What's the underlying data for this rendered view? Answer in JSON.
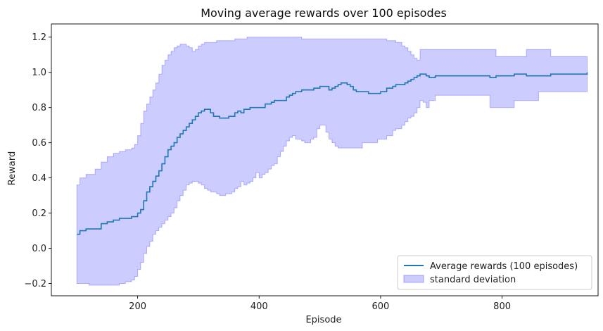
{
  "chart_data": {
    "type": "line",
    "title": "Moving average rewards over 100 episodes",
    "xlabel": "Episode",
    "ylabel": "Reward",
    "xlim": [
      58,
      958
    ],
    "ylim": [
      -0.27,
      1.275
    ],
    "xticks": [
      200,
      400,
      600,
      800
    ],
    "yticks": [
      -0.2,
      0.0,
      0.2,
      0.4,
      0.6,
      0.8,
      1.0,
      1.2
    ],
    "grid": false,
    "legend_position": "lower-right",
    "series": [
      {
        "name": "Average rewards (100 episodes)",
        "kind": "line",
        "color": "#1f77b4",
        "x": [
          100,
          105,
          110,
          115,
          120,
          130,
          140,
          150,
          160,
          170,
          180,
          190,
          195,
          200,
          205,
          210,
          215,
          220,
          225,
          230,
          235,
          240,
          245,
          250,
          255,
          260,
          265,
          270,
          275,
          280,
          285,
          290,
          295,
          300,
          305,
          310,
          315,
          320,
          325,
          330,
          335,
          340,
          345,
          350,
          355,
          360,
          365,
          370,
          375,
          380,
          385,
          390,
          395,
          400,
          405,
          410,
          415,
          420,
          425,
          430,
          435,
          440,
          445,
          450,
          455,
          460,
          465,
          470,
          475,
          480,
          485,
          490,
          495,
          500,
          505,
          510,
          515,
          520,
          525,
          530,
          535,
          540,
          545,
          550,
          555,
          560,
          565,
          570,
          575,
          580,
          585,
          590,
          595,
          600,
          605,
          610,
          615,
          620,
          625,
          630,
          635,
          640,
          645,
          650,
          655,
          660,
          665,
          670,
          675,
          680,
          690,
          700,
          720,
          740,
          760,
          780,
          790,
          800,
          820,
          840,
          860,
          880,
          900,
          920,
          935,
          940
        ],
        "y": [
          0.08,
          0.1,
          0.1,
          0.11,
          0.11,
          0.11,
          0.14,
          0.15,
          0.16,
          0.17,
          0.17,
          0.18,
          0.18,
          0.2,
          0.22,
          0.27,
          0.32,
          0.35,
          0.38,
          0.41,
          0.44,
          0.48,
          0.52,
          0.56,
          0.58,
          0.6,
          0.63,
          0.65,
          0.67,
          0.69,
          0.71,
          0.73,
          0.75,
          0.77,
          0.78,
          0.79,
          0.79,
          0.77,
          0.75,
          0.75,
          0.74,
          0.74,
          0.74,
          0.75,
          0.75,
          0.77,
          0.78,
          0.77,
          0.79,
          0.79,
          0.8,
          0.8,
          0.8,
          0.8,
          0.8,
          0.82,
          0.82,
          0.83,
          0.84,
          0.84,
          0.84,
          0.84,
          0.86,
          0.87,
          0.88,
          0.89,
          0.89,
          0.9,
          0.9,
          0.9,
          0.9,
          0.91,
          0.91,
          0.92,
          0.92,
          0.92,
          0.9,
          0.91,
          0.92,
          0.93,
          0.94,
          0.94,
          0.93,
          0.92,
          0.9,
          0.89,
          0.89,
          0.89,
          0.89,
          0.88,
          0.88,
          0.88,
          0.88,
          0.89,
          0.89,
          0.91,
          0.91,
          0.92,
          0.93,
          0.93,
          0.93,
          0.94,
          0.95,
          0.96,
          0.97,
          0.98,
          0.99,
          0.99,
          0.98,
          0.97,
          0.98,
          0.98,
          0.98,
          0.98,
          0.98,
          0.97,
          0.98,
          0.98,
          0.99,
          0.98,
          0.98,
          0.99,
          0.99,
          0.99,
          0.99,
          1.0
        ]
      },
      {
        "name": "standard deviation",
        "kind": "band",
        "color": "#0000ff",
        "fill_alpha": 0.2,
        "x": [
          100,
          105,
          110,
          115,
          120,
          130,
          140,
          150,
          160,
          170,
          180,
          190,
          195,
          200,
          205,
          210,
          215,
          220,
          225,
          230,
          235,
          240,
          245,
          250,
          255,
          260,
          265,
          270,
          275,
          280,
          285,
          290,
          295,
          300,
          305,
          310,
          315,
          320,
          325,
          330,
          335,
          340,
          345,
          350,
          355,
          360,
          365,
          370,
          375,
          380,
          385,
          390,
          395,
          400,
          405,
          410,
          415,
          420,
          425,
          430,
          435,
          440,
          445,
          450,
          455,
          460,
          465,
          470,
          475,
          480,
          485,
          490,
          495,
          500,
          505,
          510,
          515,
          520,
          525,
          530,
          535,
          540,
          545,
          550,
          555,
          560,
          565,
          570,
          575,
          580,
          585,
          590,
          595,
          600,
          605,
          610,
          615,
          620,
          625,
          630,
          635,
          640,
          645,
          650,
          655,
          660,
          665,
          670,
          675,
          680,
          690,
          700,
          720,
          740,
          760,
          780,
          790,
          800,
          820,
          840,
          860,
          880,
          900,
          920,
          935,
          940
        ],
        "lower": [
          -0.2,
          -0.2,
          -0.2,
          -0.2,
          -0.2,
          -0.21,
          -0.21,
          -0.21,
          -0.21,
          -0.21,
          -0.2,
          -0.19,
          -0.18,
          -0.16,
          -0.12,
          -0.08,
          -0.03,
          0.01,
          0.04,
          0.08,
          0.1,
          0.12,
          0.14,
          0.16,
          0.18,
          0.2,
          0.23,
          0.27,
          0.3,
          0.33,
          0.36,
          0.37,
          0.38,
          0.38,
          0.37,
          0.36,
          0.34,
          0.33,
          0.32,
          0.32,
          0.31,
          0.3,
          0.3,
          0.31,
          0.31,
          0.32,
          0.34,
          0.35,
          0.38,
          0.36,
          0.37,
          0.38,
          0.4,
          0.43,
          0.4,
          0.42,
          0.43,
          0.45,
          0.47,
          0.48,
          0.52,
          0.55,
          0.58,
          0.61,
          0.63,
          0.64,
          0.62,
          0.62,
          0.61,
          0.6,
          0.6,
          0.62,
          0.63,
          0.68,
          0.7,
          0.7,
          0.66,
          0.62,
          0.6,
          0.58,
          0.57,
          0.57,
          0.57,
          0.57,
          0.57,
          0.57,
          0.57,
          0.57,
          0.6,
          0.6,
          0.6,
          0.6,
          0.6,
          0.62,
          0.62,
          0.62,
          0.64,
          0.64,
          0.67,
          0.68,
          0.68,
          0.7,
          0.72,
          0.74,
          0.75,
          0.77,
          0.8,
          0.84,
          0.83,
          0.8,
          0.84,
          0.87,
          0.87,
          0.87,
          0.87,
          0.87,
          0.8,
          0.8,
          0.8,
          0.84,
          0.84,
          0.89,
          0.89,
          0.89,
          0.89,
          0.89
        ],
        "upper": [
          0.36,
          0.4,
          0.4,
          0.42,
          0.42,
          0.45,
          0.49,
          0.52,
          0.54,
          0.55,
          0.56,
          0.57,
          0.59,
          0.64,
          0.71,
          0.78,
          0.82,
          0.86,
          0.9,
          0.94,
          0.99,
          1.04,
          1.07,
          1.1,
          1.12,
          1.14,
          1.15,
          1.16,
          1.16,
          1.15,
          1.14,
          1.12,
          1.13,
          1.15,
          1.16,
          1.17,
          1.17,
          1.17,
          1.17,
          1.18,
          1.18,
          1.18,
          1.18,
          1.18,
          1.18,
          1.19,
          1.19,
          1.19,
          1.19,
          1.2,
          1.2,
          1.2,
          1.2,
          1.2,
          1.2,
          1.2,
          1.2,
          1.2,
          1.2,
          1.2,
          1.2,
          1.2,
          1.2,
          1.2,
          1.2,
          1.2,
          1.2,
          1.19,
          1.19,
          1.19,
          1.19,
          1.19,
          1.19,
          1.19,
          1.19,
          1.19,
          1.19,
          1.19,
          1.19,
          1.19,
          1.19,
          1.19,
          1.19,
          1.19,
          1.19,
          1.19,
          1.19,
          1.19,
          1.19,
          1.19,
          1.19,
          1.19,
          1.19,
          1.19,
          1.19,
          1.18,
          1.18,
          1.18,
          1.17,
          1.17,
          1.15,
          1.14,
          1.12,
          1.1,
          1.08,
          1.07,
          1.13,
          1.13,
          1.13,
          1.13,
          1.13,
          1.13,
          1.13,
          1.13,
          1.13,
          1.13,
          1.09,
          1.09,
          1.09,
          1.13,
          1.13,
          1.09,
          1.09,
          1.09,
          1.09,
          1.09
        ]
      }
    ]
  }
}
